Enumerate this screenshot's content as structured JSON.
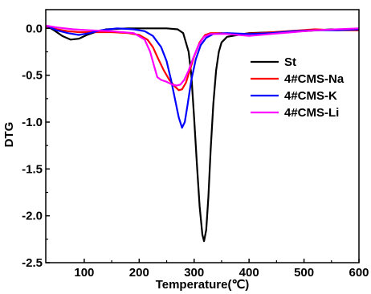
{
  "chart_data": {
    "type": "line",
    "xlabel": "Temperature(℃)",
    "ylabel": "DTG",
    "xlim": [
      30,
      600
    ],
    "ylim": [
      -2.5,
      0.2
    ],
    "x_ticks": [
      100,
      200,
      300,
      400,
      500,
      600
    ],
    "y_ticks": [
      0.0,
      -0.5,
      -1.0,
      -1.5,
      -2.0,
      -2.5
    ],
    "x_tick_labels": [
      "100",
      "200",
      "300",
      "400",
      "500",
      "600"
    ],
    "y_tick_labels": [
      "0.0",
      "-0.5",
      "-1.0",
      "-1.5",
      "-2.0",
      "-2.5"
    ],
    "grid": false,
    "legend_position": "right",
    "series": [
      {
        "name": "St",
        "color": "#000000",
        "points": [
          [
            30,
            0.03
          ],
          [
            45,
            -0.02
          ],
          [
            60,
            -0.08
          ],
          [
            75,
            -0.12
          ],
          [
            90,
            -0.11
          ],
          [
            105,
            -0.07
          ],
          [
            120,
            -0.04
          ],
          [
            140,
            -0.01
          ],
          [
            180,
            0.0
          ],
          [
            220,
            0.0
          ],
          [
            250,
            0.0
          ],
          [
            270,
            -0.01
          ],
          [
            280,
            -0.05
          ],
          [
            285,
            -0.15
          ],
          [
            290,
            -0.25
          ],
          [
            295,
            -0.5
          ],
          [
            300,
            -0.95
          ],
          [
            305,
            -1.45
          ],
          [
            310,
            -1.9
          ],
          [
            315,
            -2.2
          ],
          [
            318,
            -2.27
          ],
          [
            322,
            -2.15
          ],
          [
            326,
            -1.8
          ],
          [
            330,
            -1.3
          ],
          [
            335,
            -0.8
          ],
          [
            340,
            -0.45
          ],
          [
            345,
            -0.25
          ],
          [
            350,
            -0.15
          ],
          [
            360,
            -0.09
          ],
          [
            380,
            -0.07
          ],
          [
            400,
            -0.05
          ],
          [
            450,
            -0.04
          ],
          [
            500,
            -0.03
          ],
          [
            550,
            -0.01
          ],
          [
            600,
            -0.02
          ]
        ]
      },
      {
        "name": "4#CMS-Na",
        "color": "#ff0000",
        "points": [
          [
            30,
            0.02
          ],
          [
            50,
            -0.01
          ],
          [
            70,
            -0.03
          ],
          [
            90,
            -0.04
          ],
          [
            120,
            -0.04
          ],
          [
            150,
            -0.04
          ],
          [
            180,
            -0.05
          ],
          [
            200,
            -0.07
          ],
          [
            215,
            -0.12
          ],
          [
            225,
            -0.2
          ],
          [
            235,
            -0.33
          ],
          [
            245,
            -0.45
          ],
          [
            255,
            -0.55
          ],
          [
            265,
            -0.62
          ],
          [
            272,
            -0.66
          ],
          [
            278,
            -0.65
          ],
          [
            285,
            -0.58
          ],
          [
            292,
            -0.45
          ],
          [
            300,
            -0.3
          ],
          [
            310,
            -0.15
          ],
          [
            320,
            -0.07
          ],
          [
            330,
            -0.05
          ],
          [
            350,
            -0.05
          ],
          [
            380,
            -0.06
          ],
          [
            420,
            -0.05
          ],
          [
            470,
            -0.03
          ],
          [
            520,
            -0.01
          ],
          [
            560,
            -0.02
          ],
          [
            600,
            -0.02
          ]
        ]
      },
      {
        "name": "4#CMS-K",
        "color": "#0000ff",
        "points": [
          [
            30,
            0.03
          ],
          [
            50,
            -0.02
          ],
          [
            70,
            -0.05
          ],
          [
            90,
            -0.07
          ],
          [
            110,
            -0.05
          ],
          [
            130,
            -0.02
          ],
          [
            160,
            0.0
          ],
          [
            190,
            -0.01
          ],
          [
            210,
            -0.03
          ],
          [
            225,
            -0.08
          ],
          [
            240,
            -0.2
          ],
          [
            250,
            -0.35
          ],
          [
            258,
            -0.55
          ],
          [
            265,
            -0.75
          ],
          [
            272,
            -0.95
          ],
          [
            278,
            -1.06
          ],
          [
            283,
            -1.0
          ],
          [
            288,
            -0.82
          ],
          [
            295,
            -0.55
          ],
          [
            303,
            -0.33
          ],
          [
            312,
            -0.18
          ],
          [
            322,
            -0.1
          ],
          [
            335,
            -0.06
          ],
          [
            360,
            -0.05
          ],
          [
            400,
            -0.06
          ],
          [
            440,
            -0.05
          ],
          [
            480,
            -0.03
          ],
          [
            520,
            -0.02
          ],
          [
            560,
            -0.02
          ],
          [
            600,
            -0.01
          ]
        ]
      },
      {
        "name": "4#CMS-Li",
        "color": "#ff00ff",
        "points": [
          [
            30,
            0.03
          ],
          [
            50,
            0.01
          ],
          [
            80,
            -0.01
          ],
          [
            110,
            -0.02
          ],
          [
            150,
            -0.03
          ],
          [
            190,
            -0.05
          ],
          [
            210,
            -0.12
          ],
          [
            220,
            -0.25
          ],
          [
            228,
            -0.42
          ],
          [
            233,
            -0.52
          ],
          [
            240,
            -0.55
          ],
          [
            250,
            -0.57
          ],
          [
            260,
            -0.6
          ],
          [
            268,
            -0.61
          ],
          [
            275,
            -0.6
          ],
          [
            282,
            -0.55
          ],
          [
            290,
            -0.45
          ],
          [
            298,
            -0.32
          ],
          [
            308,
            -0.18
          ],
          [
            318,
            -0.09
          ],
          [
            330,
            -0.06
          ],
          [
            360,
            -0.06
          ],
          [
            400,
            -0.08
          ],
          [
            440,
            -0.06
          ],
          [
            480,
            -0.04
          ],
          [
            520,
            -0.02
          ],
          [
            560,
            -0.01
          ],
          [
            600,
            0.0
          ]
        ]
      }
    ]
  }
}
